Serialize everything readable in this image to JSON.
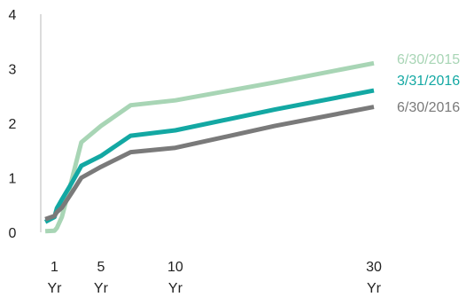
{
  "chart_data": {
    "type": "line",
    "title": "",
    "xlabel": "",
    "ylabel": "",
    "ylim": [
      0,
      4
    ],
    "yticks": [
      "0",
      "1",
      "2",
      "3",
      "4"
    ],
    "xticks": [
      {
        "x": 0.25,
        "top": "1",
        "bottom": "Yr"
      },
      {
        "x": 5,
        "top": "5",
        "bottom": "Yr"
      },
      {
        "x": 10,
        "top": "10",
        "bottom": "Yr"
      },
      {
        "x": 30,
        "top": "30",
        "bottom": "Yr"
      }
    ],
    "grid": false,
    "legend_placement": "right, next to line ends",
    "series": [
      {
        "name": "6/30/2015",
        "color": "#a8d5b5",
        "x": [
          0.083,
          0.25,
          0.5,
          1,
          2,
          3,
          5,
          7,
          10,
          20,
          30
        ],
        "y": [
          0.02,
          0.03,
          0.08,
          0.28,
          0.95,
          1.65,
          1.95,
          2.33,
          2.42,
          2.75,
          3.1
        ]
      },
      {
        "name": "3/31/2016",
        "color": "#13a8a3",
        "x": [
          0.083,
          0.25,
          0.5,
          1,
          2,
          3,
          5,
          7,
          10,
          20,
          30
        ],
        "y": [
          0.19,
          0.28,
          0.44,
          0.6,
          0.9,
          1.22,
          1.4,
          1.77,
          1.87,
          2.25,
          2.6
        ]
      },
      {
        "name": "6/30/2016",
        "color": "#7a7a7a",
        "x": [
          0.083,
          0.25,
          0.5,
          1,
          2,
          3,
          5,
          7,
          10,
          20,
          30
        ],
        "y": [
          0.24,
          0.3,
          0.37,
          0.45,
          0.72,
          1.0,
          1.2,
          1.47,
          1.55,
          1.95,
          2.3
        ]
      }
    ]
  }
}
